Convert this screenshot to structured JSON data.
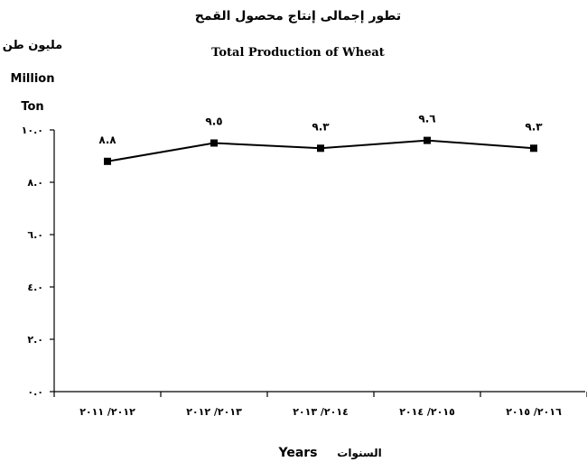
{
  "chart_data": {
    "type": "line",
    "title_ar": "تطور إجمالى إنتاج محصول القمح",
    "title_en": "Total Production of Wheat",
    "ylabel_ar": "مليون طن",
    "ylabel_en_1": "Million",
    "ylabel_en_2": "Ton",
    "xlabel_en": "Years",
    "xlabel_ar": "السنوات",
    "categories": [
      "٢٠١٢/ ٢٠١١",
      "٢٠١٣/ ٢٠١٢",
      "٢٠١٤/ ٢٠١٣",
      "٢٠١٥/ ٢٠١٤",
      "٢٠١٦/ ٢٠١٥"
    ],
    "values": [
      8.8,
      9.5,
      9.3,
      9.6,
      9.3
    ],
    "data_labels": [
      "٨.٨",
      "٩.٥",
      "٩.٣",
      "٩.٦",
      "٩.٣"
    ],
    "ylim": [
      0,
      10
    ],
    "yticks": [
      0,
      2,
      4,
      6,
      8,
      10
    ],
    "ytick_labels": [
      "٠.٠",
      "٢.٠",
      "٤.٠",
      "٦.٠",
      "٨.٠",
      "١٠.٠"
    ],
    "grid": false,
    "legend": "none",
    "line_color": "#000000",
    "marker": "square"
  }
}
